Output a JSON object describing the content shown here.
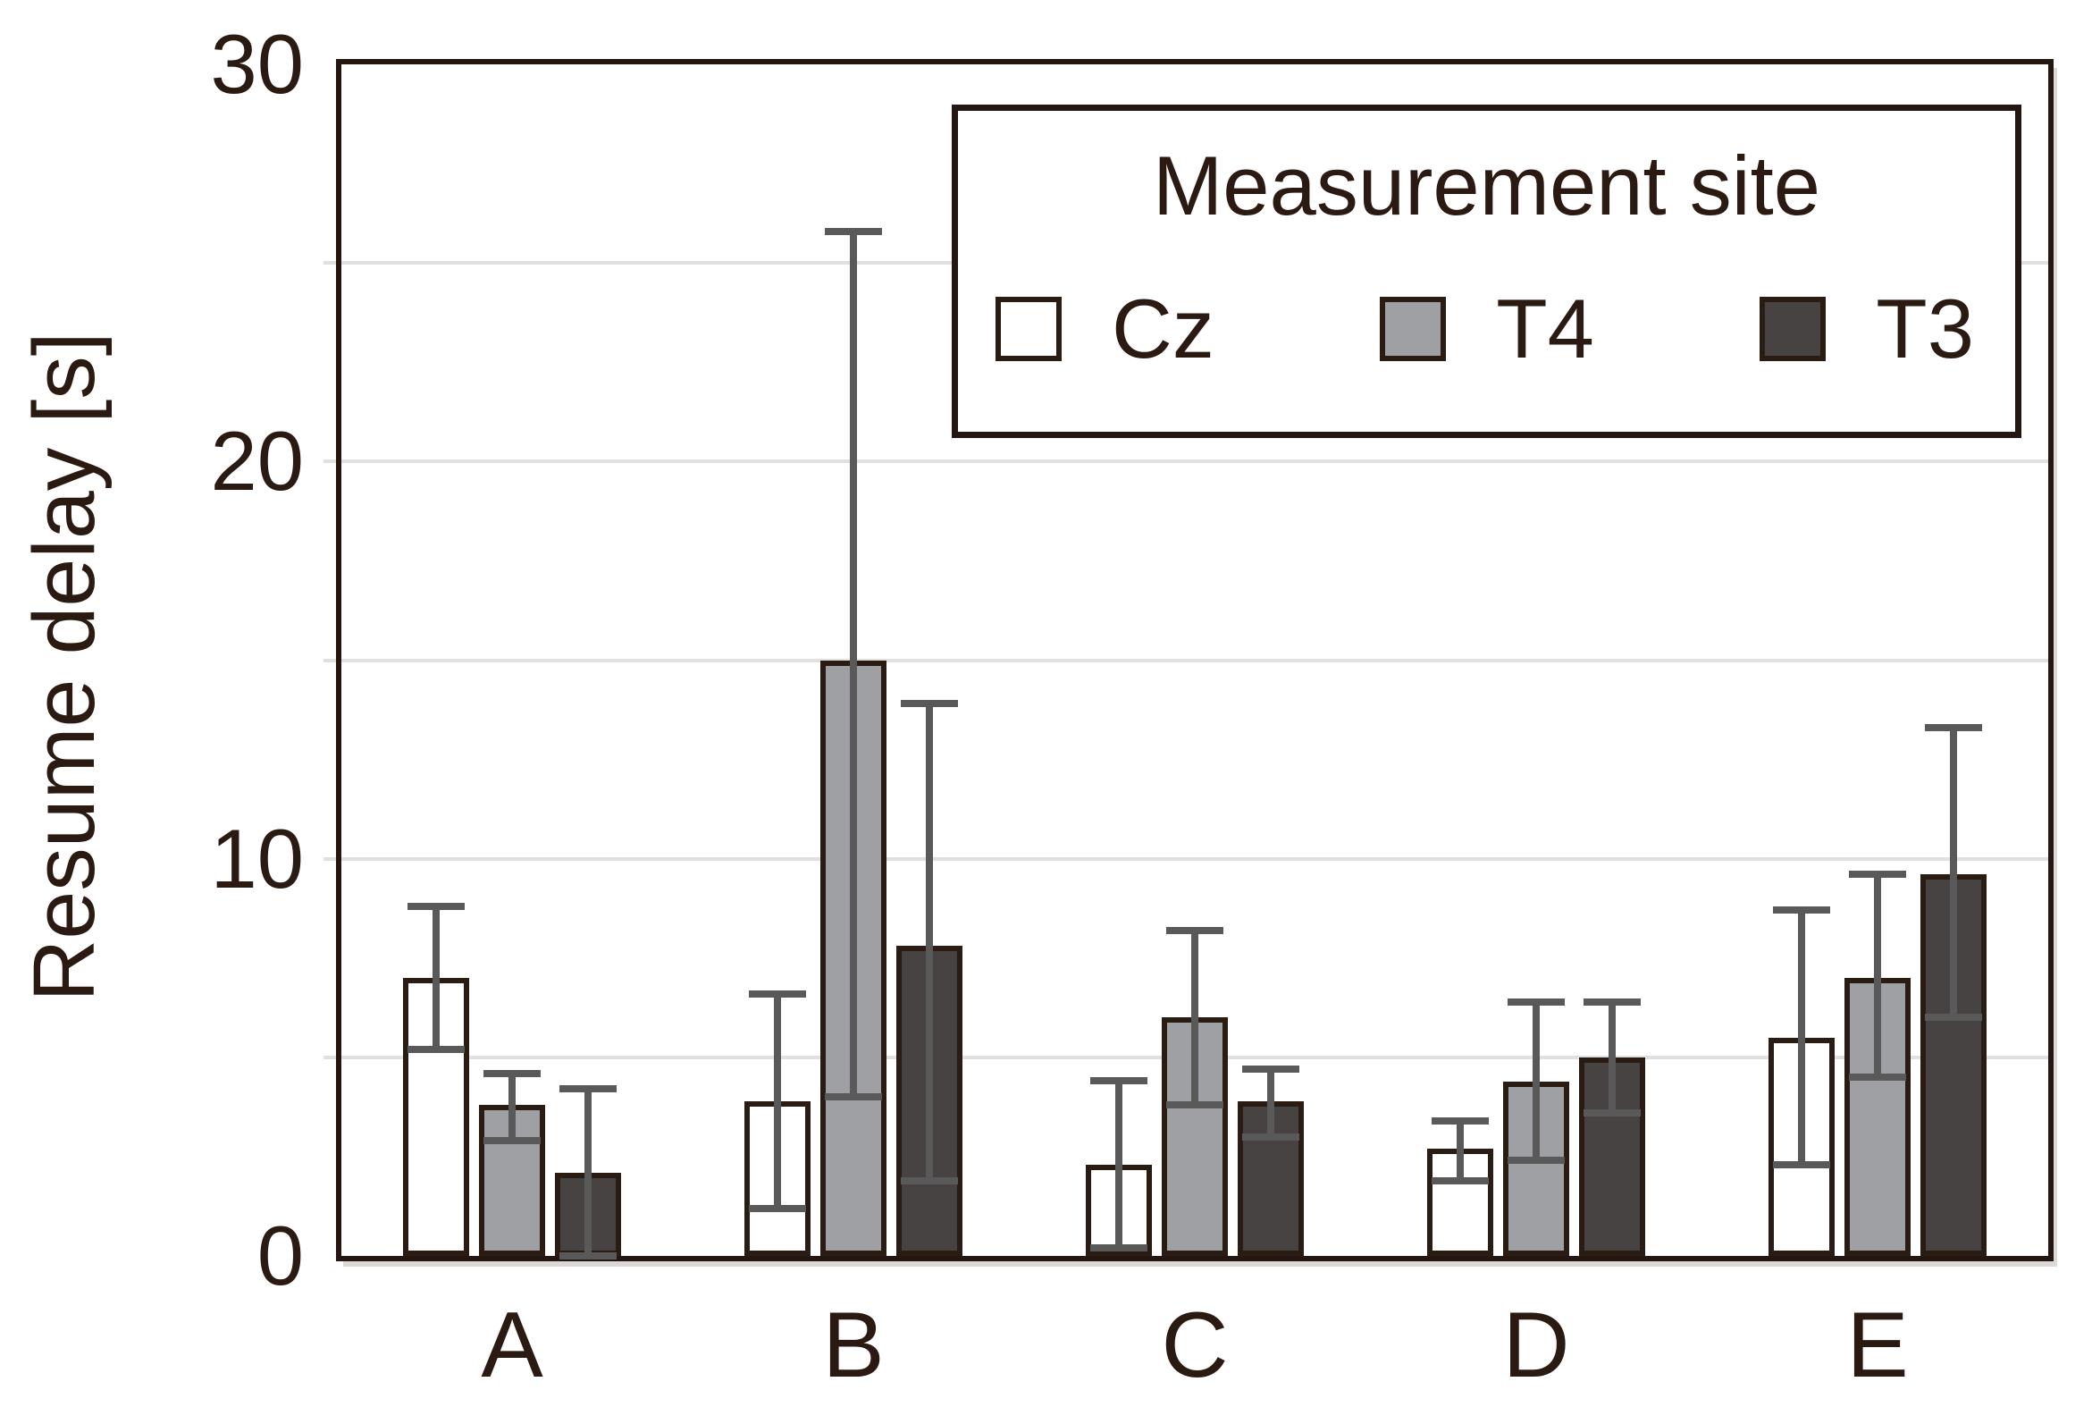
{
  "colors": {
    "text": "#2b1a12",
    "axis_border": "#241712",
    "bar_border": "#2a1b13",
    "gridline": "#e0e0e0",
    "error_bar": "#595959",
    "series_cz": "#ffffff",
    "series_t4": "#9fa0a3",
    "series_t3": "#474342"
  },
  "legend": {
    "title": "Measurement site"
  },
  "chart_data": {
    "type": "bar",
    "title": "",
    "xlabel": "",
    "ylabel": "Resume delay [s]",
    "ylim": [
      0,
      30
    ],
    "yticks": [
      0,
      10,
      20,
      30
    ],
    "gridline_step": 5,
    "grid": "horizontal",
    "legend_title": "Measurement site",
    "legend_position": "top-right-inside",
    "categories": [
      "A",
      "B",
      "C",
      "D",
      "E"
    ],
    "series": [
      {
        "name": "Cz",
        "color": "#ffffff",
        "values": [
          7.0,
          3.9,
          2.3,
          2.7,
          5.5
        ],
        "error_low": [
          5.2,
          1.2,
          0.2,
          1.9,
          2.3
        ],
        "error_high": [
          8.8,
          6.6,
          4.4,
          3.4,
          8.7
        ]
      },
      {
        "name": "T4",
        "color": "#9fa0a3",
        "values": [
          3.8,
          15.0,
          6.0,
          4.4,
          7.0
        ],
        "error_low": [
          2.9,
          4.0,
          3.8,
          2.4,
          4.5
        ],
        "error_high": [
          4.6,
          25.8,
          8.2,
          6.4,
          9.6
        ]
      },
      {
        "name": "T3",
        "color": "#474342",
        "values": [
          2.1,
          7.8,
          3.9,
          5.0,
          9.6
        ],
        "error_low": [
          0.0,
          1.9,
          3.0,
          3.6,
          6.0
        ],
        "error_high": [
          4.2,
          13.9,
          4.7,
          6.4,
          13.3
        ]
      }
    ]
  }
}
